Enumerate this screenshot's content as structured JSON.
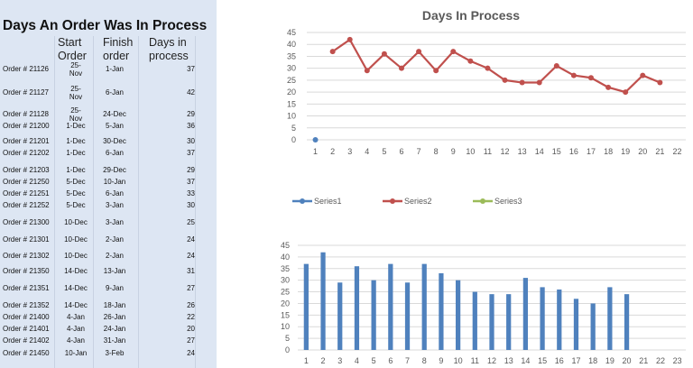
{
  "sheet": {
    "title": "Days An Order Was In Process",
    "headers": {
      "start": "Start\nOrder",
      "finish": "Finish\norder",
      "days": "Days in\nprocess"
    },
    "rows": [
      {
        "order": "Order # 21126",
        "start": "25-\nNov",
        "finish": "1-Jan",
        "days": "37"
      },
      {
        "order": "Order # 21127",
        "start": "25-\nNov",
        "finish": "6-Jan",
        "days": "42"
      },
      {
        "order": "Order # 21128",
        "start": "25-\nNov",
        "finish": "24-Dec",
        "days": "29"
      },
      {
        "order": "Order # 21200",
        "start": "1-Dec",
        "finish": "5-Jan",
        "days": "36"
      },
      {
        "order": "Order # 21201",
        "start": "1-Dec",
        "finish": "30-Dec",
        "days": "30"
      },
      {
        "order": "Order # 21202",
        "start": "1-Dec",
        "finish": "6-Jan",
        "days": "37"
      },
      {
        "order": "Order # 21203",
        "start": "1-Dec",
        "finish": "29-Dec",
        "days": "29"
      },
      {
        "order": "Order # 21250",
        "start": "5-Dec",
        "finish": "10-Jan",
        "days": "37"
      },
      {
        "order": "Order # 21251",
        "start": "5-Dec",
        "finish": "6-Jan",
        "days": "33"
      },
      {
        "order": "Order # 21252",
        "start": "5-Dec",
        "finish": "3-Jan",
        "days": "30"
      },
      {
        "order": "Order # 21300",
        "start": "10-Dec",
        "finish": "3-Jan",
        "days": "25"
      },
      {
        "order": "Order # 21301",
        "start": "10-Dec",
        "finish": "2-Jan",
        "days": "24"
      },
      {
        "order": "Order # 21302",
        "start": "10-Dec",
        "finish": "2-Jan",
        "days": "24"
      },
      {
        "order": "Order # 21350",
        "start": "14-Dec",
        "finish": "13-Jan",
        "days": "31"
      },
      {
        "order": "Order # 21351",
        "start": "14-Dec",
        "finish": "9-Jan",
        "days": "27"
      },
      {
        "order": "Order # 21352",
        "start": "14-Dec",
        "finish": "18-Jan",
        "days": "26"
      },
      {
        "order": "Order # 21400",
        "start": "4-Jan",
        "finish": "26-Jan",
        "days": "22"
      },
      {
        "order": "Order # 21401",
        "start": "4-Jan",
        "finish": "24-Jan",
        "days": "20"
      },
      {
        "order": "Order # 21402",
        "start": "4-Jan",
        "finish": "31-Jan",
        "days": "27"
      },
      {
        "order": "Order # 21450",
        "start": "10-Jan",
        "finish": "3-Feb",
        "days": "24"
      }
    ]
  },
  "chart_data": [
    {
      "type": "line",
      "title": "Days In Process",
      "xlabel": "",
      "ylabel": "",
      "x": [
        1,
        2,
        3,
        4,
        5,
        6,
        7,
        8,
        9,
        10,
        11,
        12,
        13,
        14,
        15,
        16,
        17,
        18,
        19,
        20,
        21,
        22
      ],
      "ylim": [
        0,
        45
      ],
      "yticks": [
        0,
        5,
        10,
        15,
        20,
        25,
        30,
        35,
        40,
        45
      ],
      "grid": true,
      "legend": "bottom",
      "series": [
        {
          "name": "Series1",
          "color": "#4f81bd",
          "points": [
            [
              1,
              0
            ]
          ]
        },
        {
          "name": "Series2",
          "color": "#c0504d",
          "points": [
            [
              2,
              37
            ],
            [
              3,
              42
            ],
            [
              4,
              29
            ],
            [
              5,
              36
            ],
            [
              6,
              30
            ],
            [
              7,
              37
            ],
            [
              8,
              29
            ],
            [
              9,
              37
            ],
            [
              10,
              33
            ],
            [
              11,
              30
            ],
            [
              12,
              25
            ],
            [
              13,
              24
            ],
            [
              14,
              24
            ],
            [
              15,
              31
            ],
            [
              16,
              27
            ],
            [
              17,
              26
            ],
            [
              18,
              22
            ],
            [
              19,
              20
            ],
            [
              20,
              27
            ],
            [
              21,
              24
            ]
          ]
        },
        {
          "name": "Series3",
          "color": "#9bbb59",
          "points": []
        }
      ]
    },
    {
      "type": "bar",
      "title": "",
      "xlabel": "",
      "ylabel": "",
      "categories": [
        1,
        2,
        3,
        4,
        5,
        6,
        7,
        8,
        9,
        10,
        11,
        12,
        13,
        14,
        15,
        16,
        17,
        18,
        19,
        20,
        21,
        22,
        23
      ],
      "values": [
        37,
        42,
        29,
        36,
        30,
        37,
        29,
        37,
        33,
        30,
        25,
        24,
        24,
        31,
        27,
        26,
        22,
        20,
        27,
        24,
        null,
        null,
        null
      ],
      "ylim": [
        0,
        45
      ],
      "yticks": [
        0,
        5,
        10,
        15,
        20,
        25,
        30,
        35,
        40,
        45
      ],
      "grid": true,
      "color": "#4f81bd"
    }
  ]
}
